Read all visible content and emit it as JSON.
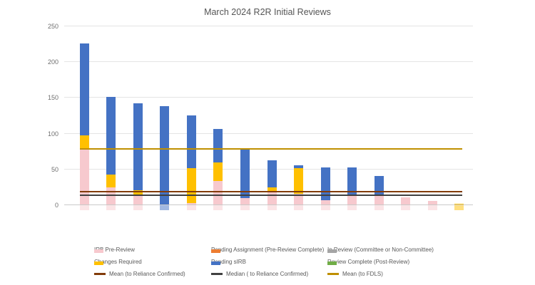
{
  "title": "March 2024 R2R Initial Reviews",
  "chart_data": {
    "type": "bar",
    "stacked": true,
    "title": "March 2024 R2R Initial Reviews",
    "xlabel": "",
    "ylabel": "",
    "x_labels_visible": false,
    "categories": [
      "1",
      "2",
      "3",
      "4",
      "5",
      "6",
      "7",
      "8",
      "9",
      "10",
      "11",
      "12",
      "13",
      "14",
      "15"
    ],
    "series": [
      {
        "name": "IRB Pre-Review",
        "color": "#F7C9CE",
        "values": [
          78,
          25,
          15,
          0,
          3,
          34,
          10,
          19,
          16,
          7,
          14,
          13,
          11,
          6,
          0
        ]
      },
      {
        "name": "Pending Assignment (Pre-Review Complete)",
        "color": "#ED7D31",
        "values": [
          0,
          0,
          0,
          0,
          0,
          0,
          0,
          0,
          0,
          0,
          0,
          0,
          0,
          0,
          0
        ]
      },
      {
        "name": "Changes Required",
        "color": "#FFC000",
        "values": [
          20,
          18,
          6,
          0,
          49,
          26,
          0,
          6,
          36,
          0,
          0,
          0,
          0,
          0,
          2
        ]
      },
      {
        "name": "Pending sIRB",
        "color": "#4472C4",
        "values": [
          128,
          108,
          121,
          138,
          74,
          47,
          69,
          38,
          4,
          46,
          39,
          28,
          0,
          0,
          0
        ]
      },
      {
        "name": "In Review (Committee or Non-Committee)",
        "color": "#A5A5A5",
        "values": [
          0,
          0,
          0,
          0,
          0,
          0,
          0,
          0,
          0,
          0,
          0,
          0,
          0,
          0,
          0
        ]
      },
      {
        "name": "Review Complete (Post-Review)",
        "color": "#70AD47",
        "values": [
          0,
          0,
          0,
          0,
          0,
          0,
          0,
          0,
          0,
          0,
          0,
          0,
          0,
          0,
          0
        ]
      }
    ],
    "bar_totals": [
      226,
      151,
      142,
      138,
      126,
      107,
      79,
      63,
      56,
      53,
      53,
      41,
      11,
      6,
      2
    ],
    "ref_lines": [
      {
        "name": "Mean (to Reliance Confirmed)",
        "value": 19,
        "color": "#823B0A"
      },
      {
        "name": "Median ( to Reliance Confirmed)",
        "value": 13.5,
        "color": "#404040"
      },
      {
        "name": "Mean (to FDLS)",
        "value": 79,
        "color": "#BF8F00"
      }
    ],
    "y_ticks": [
      0,
      50,
      100,
      150,
      200,
      250
    ],
    "ylim": [
      0,
      250
    ],
    "grid": "horizontal",
    "legend_position": "bottom"
  },
  "legend": {
    "items": [
      {
        "label": "IRB Pre-Review",
        "color": "#F7C9CE",
        "swatch": "bar"
      },
      {
        "label": "Pending Assignment (Pre-Review Complete)",
        "color": "#ED7D31",
        "swatch": "bar"
      },
      {
        "label": "In Review (Committee or Non-Committee)",
        "color": "#A5A5A5",
        "swatch": "bar"
      },
      {
        "label": "Changes Required",
        "color": "#FFC000",
        "swatch": "bar"
      },
      {
        "label": "Pending sIRB",
        "color": "#4472C4",
        "swatch": "bar"
      },
      {
        "label": "Review Complete (Post-Review)",
        "color": "#70AD47",
        "swatch": "bar"
      },
      {
        "label": "Mean (to Reliance Confirmed)",
        "color": "#823B0A",
        "swatch": "line"
      },
      {
        "label": "Median ( to Reliance Confirmed)",
        "color": "#404040",
        "swatch": "line"
      },
      {
        "label": "Mean (to FDLS)",
        "color": "#BF8F00",
        "swatch": "line"
      }
    ]
  }
}
